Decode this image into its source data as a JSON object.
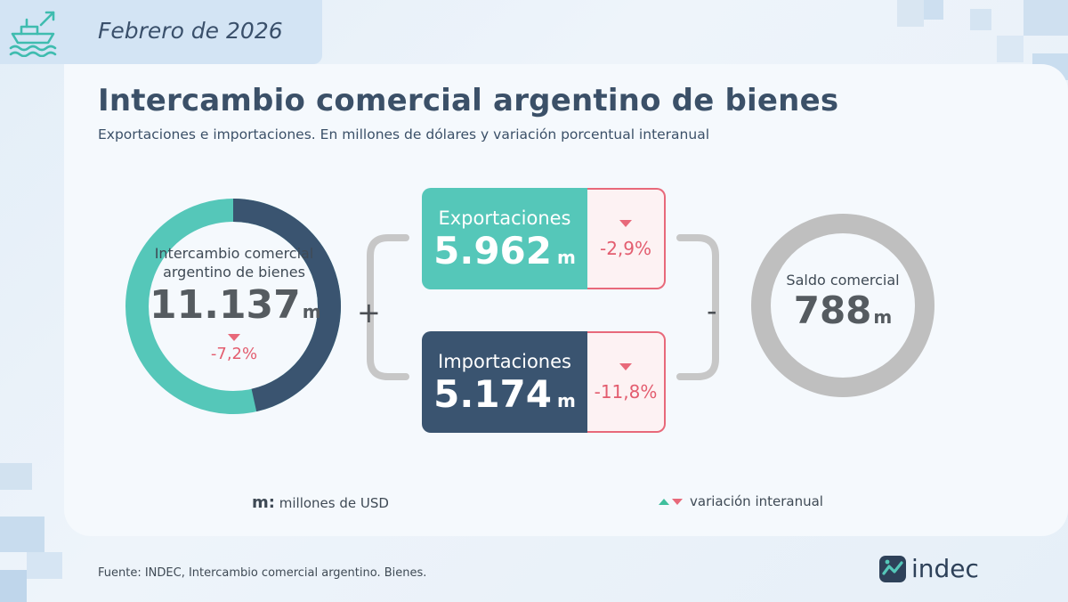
{
  "header": {
    "date": "Febrero de 2026",
    "icon": "ship-trade-icon"
  },
  "title": "Intercambio comercial argentino de bienes",
  "subtitle": "Exportaciones e importaciones. En millones de dólares y variación porcentual interanual",
  "chart_data": {
    "type": "infographic",
    "intercambio": {
      "label": "Intercambio comercial argentino de bienes",
      "value": "11.137",
      "unit": "m",
      "variation": "-7,2%",
      "direction": "down",
      "donut_share_exportaciones": 0.535,
      "donut_share_importaciones": 0.465
    },
    "exportaciones": {
      "label": "Exportaciones",
      "value": "5.962",
      "unit": "m",
      "variation": "-2,9%",
      "direction": "down"
    },
    "importaciones": {
      "label": "Importaciones",
      "value": "5.174",
      "unit": "m",
      "variation": "-11,8%",
      "direction": "down"
    },
    "saldo": {
      "label": "Saldo comercial",
      "value": "788",
      "unit": "m"
    },
    "operators": {
      "plus": "+",
      "minus": "-"
    }
  },
  "legend": {
    "m_key": "m:",
    "m_text": "millones de USD",
    "var_text": "variación interanual"
  },
  "footer": {
    "source": "Fuente: INDEC, Intercambio comercial argentino. Bienes.",
    "logo_text": "indec"
  },
  "colors": {
    "exports": "#55c7b9",
    "imports": "#3a5470",
    "down": "#e8697a",
    "up": "#3fbf9d",
    "saldo_ring": "#bfbfbf"
  }
}
